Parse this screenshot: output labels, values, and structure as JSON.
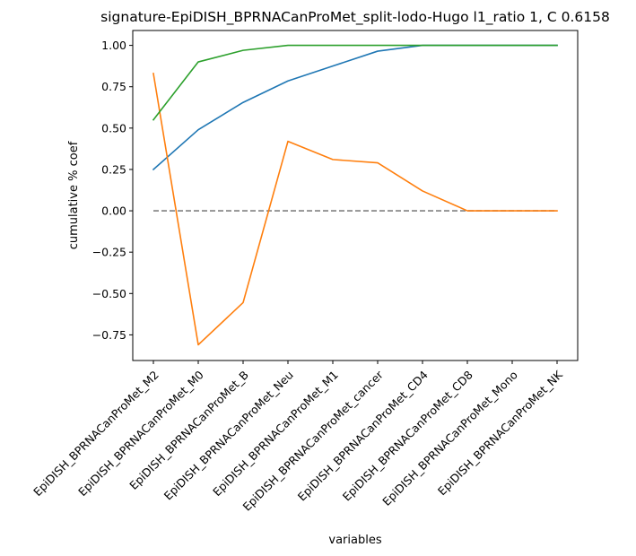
{
  "chart_data": {
    "type": "line",
    "title": "signature-EpiDISH_BPRNACanProMet_split-lodo-Hugo l1_ratio 1, C 0.6158",
    "xlabel": "variables",
    "ylabel": "cumulative % coef",
    "categories": [
      "EpiDISH_BPRNACanProMet_M2",
      "EpiDISH_BPRNACanProMet_M0",
      "EpiDISH_BPRNACanProMet_B",
      "EpiDISH_BPRNACanProMet_Neu",
      "EpiDISH_BPRNACanProMet_M1",
      "EpiDISH_BPRNACanProMet_cancer",
      "EpiDISH_BPRNACanProMet_CD4",
      "EpiDISH_BPRNACanProMet_CD8",
      "EpiDISH_BPRNACanProMet_Mono",
      "EpiDISH_BPRNACanProMet_NK"
    ],
    "ylim": [
      -0.905,
      1.09
    ],
    "yticks": [
      -0.75,
      -0.5,
      -0.25,
      0.0,
      0.25,
      0.5,
      0.75,
      1.0
    ],
    "ytick_labels": [
      "−0.75",
      "−0.50",
      "−0.25",
      "0.00",
      "0.25",
      "0.50",
      "0.75",
      "1.00"
    ],
    "grid": false,
    "series": [
      {
        "color": "#1f77b4",
        "values": [
          0.25,
          0.49,
          0.655,
          0.785,
          0.875,
          0.965,
          1.0,
          1.0,
          1.0,
          1.0
        ]
      },
      {
        "color": "#ff7f0e",
        "values": [
          0.83,
          -0.81,
          -0.555,
          0.42,
          0.31,
          0.29,
          0.12,
          0.0,
          0.0,
          0.0
        ]
      },
      {
        "color": "#2ca02c",
        "values": [
          0.55,
          0.9,
          0.97,
          1.0,
          1.0,
          1.0,
          1.0,
          1.0,
          1.0,
          1.0
        ]
      }
    ],
    "reference_line": {
      "y": 0.0,
      "color": "#808080",
      "style": "dashed"
    }
  }
}
